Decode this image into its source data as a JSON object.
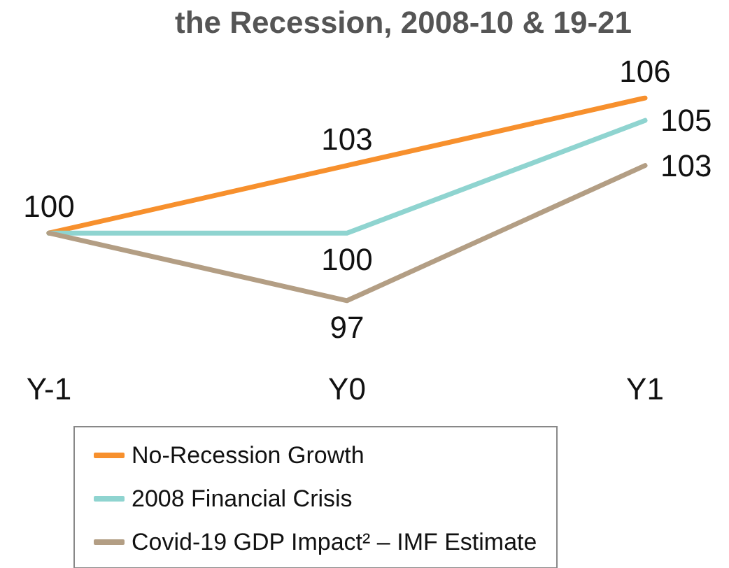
{
  "chart_data": {
    "type": "line",
    "title": "the Recession, 2008-10 & 19-21",
    "categories": [
      "Y-1",
      "Y0",
      "Y1"
    ],
    "series": [
      {
        "name": "No-Recession Growth",
        "color": "#f7902d",
        "values": [
          100,
          103,
          106
        ]
      },
      {
        "name": "2008 Financial Crisis",
        "color": "#8fd4d0",
        "values": [
          100,
          100,
          105
        ],
        "value_labels": [
          null,
          "100",
          "105"
        ]
      },
      {
        "name": "Covid-19 GDP Impact² – IMF Estimate",
        "color": "#b39e84",
        "values": [
          100,
          97,
          103
        ],
        "value_labels": [
          null,
          "97",
          "103"
        ]
      }
    ],
    "data_labels": true,
    "grid": false,
    "legend": "bottom",
    "marker": "none",
    "line_style": "solid"
  }
}
